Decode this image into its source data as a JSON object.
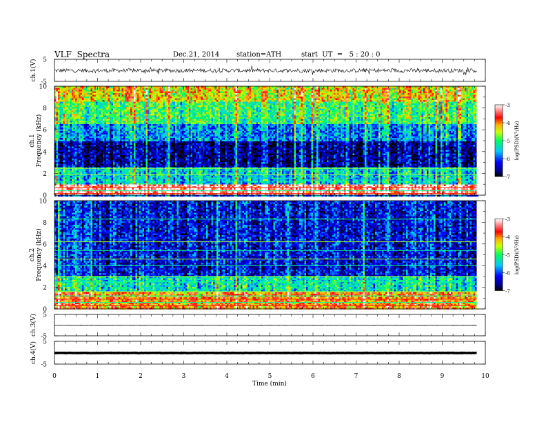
{
  "header": {
    "title": "VLF  Spectra",
    "date": "Dec.21, 2014",
    "station": "station=ATH",
    "start": "start  UT  =   5 : 20 : 0"
  },
  "chart_data": [
    {
      "type": "line",
      "panel": "ch1-waveform",
      "ylabel": "ch.1(V)",
      "yticks": [
        "5",
        "-5"
      ],
      "ylim": [
        -5,
        5
      ],
      "xlim": [
        0,
        10
      ],
      "data_end_min": 9.8,
      "series": [
        {
          "values_desc": "noisy waveform around about -0.1 V, amplitude roughly ±1 V with spikes to about ±1.5 V"
        }
      ]
    },
    {
      "type": "heatmap",
      "panel": "ch1-spectrogram",
      "ylabel_top": "ch.1",
      "ylabel": "Frequency  (kHz)",
      "yticks": [
        "0",
        "2",
        "4",
        "6",
        "8",
        "10"
      ],
      "ylim": [
        0,
        10
      ],
      "xlim": [
        0,
        10
      ],
      "data_end_min": 9.8,
      "colorbar": {
        "label": "log(PSD)(V²/Hz)",
        "ticks": [
          "-3",
          "-4",
          "-5",
          "-6",
          "-7"
        ],
        "range": [
          -7,
          -3
        ]
      },
      "bands": [
        {
          "fmin": 0,
          "fmax": 1.0,
          "level": -3.3
        },
        {
          "fmin": 1.0,
          "fmax": 2.6,
          "level": -5.5
        },
        {
          "fmin": 2.6,
          "fmax": 5.0,
          "level": -6.6
        },
        {
          "fmin": 5.0,
          "fmax": 6.5,
          "level": -5.8
        },
        {
          "fmin": 6.5,
          "fmax": 8.5,
          "level": -5.0
        },
        {
          "fmin": 8.5,
          "fmax": 10,
          "level": -4.4
        }
      ]
    },
    {
      "type": "heatmap",
      "panel": "ch2-spectrogram",
      "ylabel_top": "ch.2",
      "ylabel": "Frequency  (kHz)",
      "yticks": [
        "0",
        "2",
        "4",
        "6",
        "8",
        "10"
      ],
      "ylim": [
        0,
        10
      ],
      "xlim": [
        0,
        10
      ],
      "data_end_min": 9.8,
      "colorbar": {
        "label": "log(PSD)(V²/Hz)",
        "ticks": [
          "-3",
          "-4",
          "-5",
          "-6",
          "-7"
        ],
        "range": [
          -7,
          -3
        ]
      },
      "bands": [
        {
          "fmin": 0,
          "fmax": 1.5,
          "level": -4.0
        },
        {
          "fmin": 1.5,
          "fmax": 3.0,
          "level": -5.3
        },
        {
          "fmin": 3.0,
          "fmax": 10,
          "level": -6.3
        }
      ]
    },
    {
      "type": "line",
      "panel": "ch3-waveform",
      "ylabel": "ch.3(V)",
      "yticks": [
        "5",
        "-5"
      ],
      "ylim": [
        -5,
        5
      ],
      "xlim": [
        0,
        10
      ],
      "data_end_min": 9.8,
      "series": [
        {
          "values_desc": "nearly flat trace near 0 V with small noise"
        }
      ]
    },
    {
      "type": "line",
      "panel": "ch4-waveform",
      "ylabel": "ch.4(V)",
      "yticks": [
        "5",
        "-5"
      ],
      "ylim": [
        -5,
        5
      ],
      "xlim": [
        0,
        10
      ],
      "data_end_min": 9.8,
      "series": [
        {
          "values_desc": "thick flat trace near 0 V"
        }
      ]
    }
  ],
  "xaxis": {
    "label": "Time  (min)",
    "ticks": [
      "0",
      "1",
      "2",
      "3",
      "4",
      "5",
      "6",
      "7",
      "8",
      "9",
      "10"
    ]
  }
}
